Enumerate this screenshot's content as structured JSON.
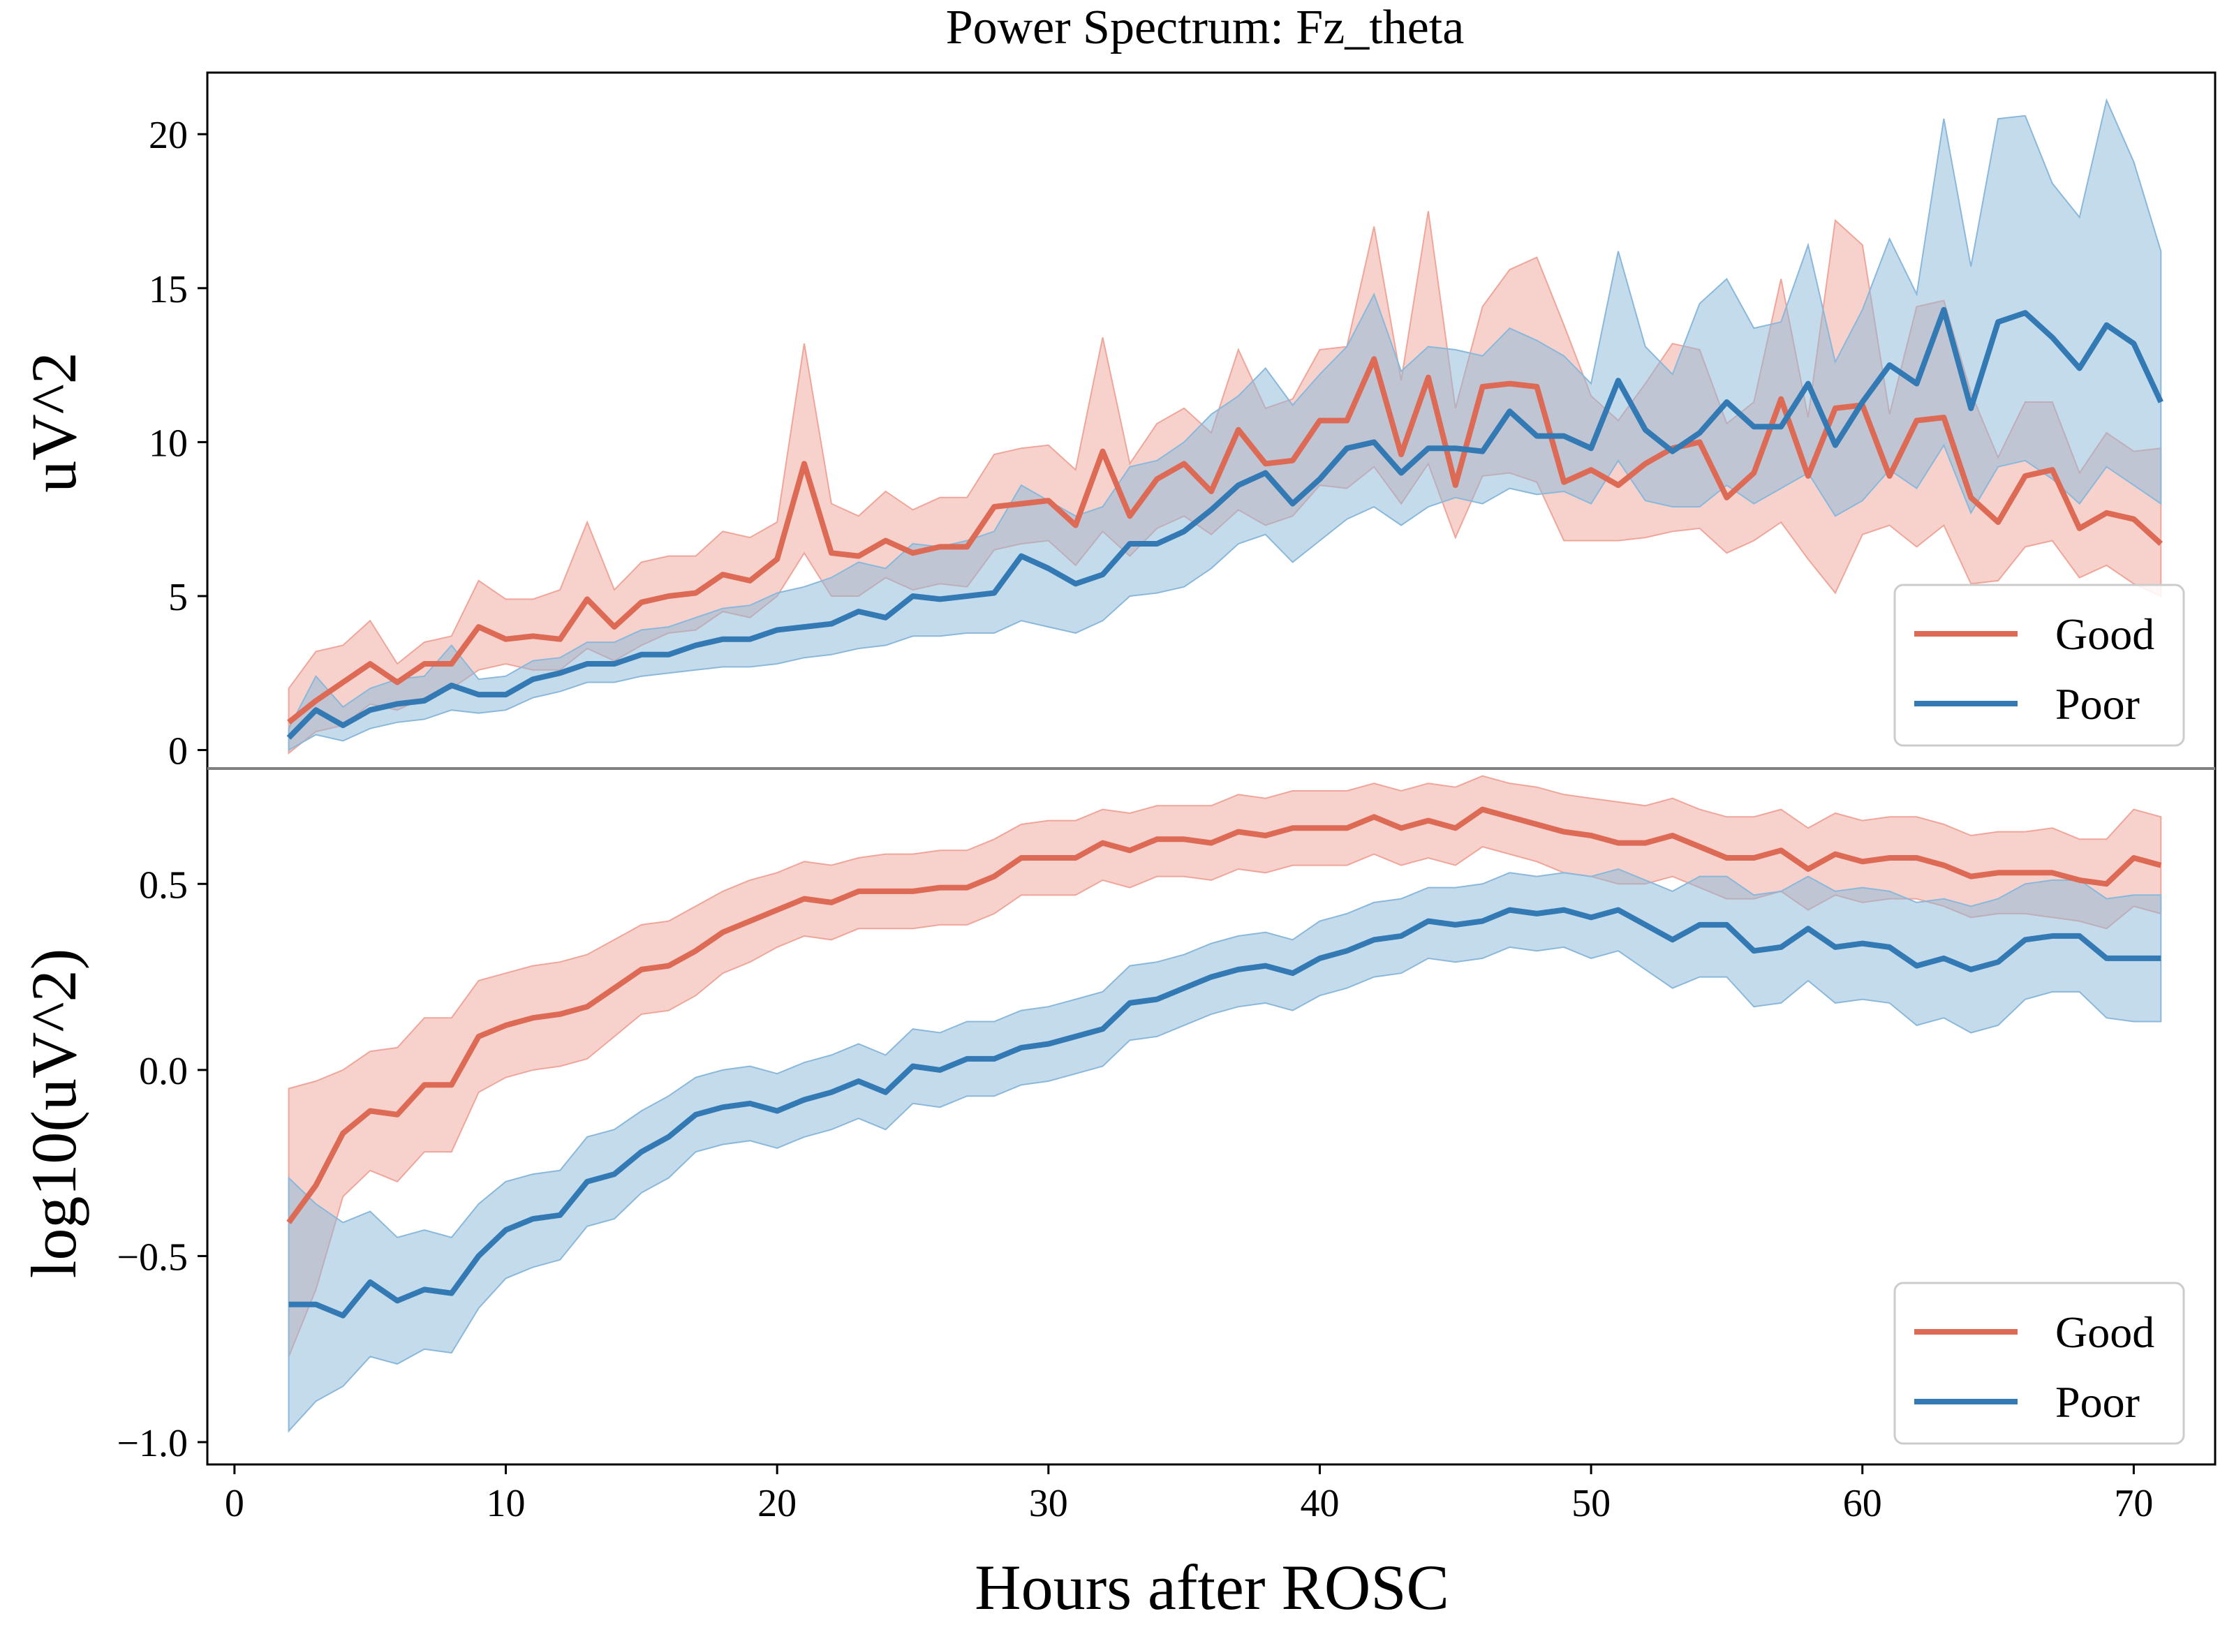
{
  "figure": {
    "title": "Power Spectrum: Fz_theta",
    "xlabel": "Hours after ROSC"
  },
  "colors": {
    "Good": "#dd6a55",
    "Poor": "#3379b4",
    "Good_band": "#f0a59a",
    "Poor_band": "#8ab8da"
  },
  "chart_data": [
    {
      "type": "line",
      "panel": "top",
      "title": "Power Spectrum: Fz_theta",
      "xlabel": "",
      "ylabel": "uV^2",
      "xlim": [
        -1,
        73
      ],
      "ylim": [
        -0.6,
        22.0
      ],
      "xticks": [
        0,
        10,
        20,
        30,
        40,
        50,
        60,
        70
      ],
      "yticks": [
        0,
        5,
        10,
        15,
        20
      ],
      "ytick_labels": [
        "0",
        "5",
        "10",
        "15",
        "20"
      ],
      "grid": false,
      "legend": "lower right",
      "x": [
        2,
        3,
        4,
        5,
        6,
        7,
        8,
        9,
        10,
        11,
        12,
        13,
        14,
        15,
        16,
        17,
        18,
        19,
        20,
        21,
        22,
        23,
        24,
        25,
        26,
        27,
        28,
        29,
        30,
        31,
        32,
        33,
        34,
        35,
        36,
        37,
        38,
        39,
        40,
        41,
        42,
        43,
        44,
        45,
        46,
        47,
        48,
        49,
        50,
        51,
        52,
        53,
        54,
        55,
        56,
        57,
        58,
        59,
        60,
        61,
        62,
        63,
        64,
        65,
        66,
        67,
        68,
        69,
        70,
        71
      ],
      "series": [
        {
          "name": "Good",
          "values": [
            0.9,
            1.6,
            2.2,
            2.8,
            2.2,
            2.8,
            2.8,
            4.0,
            3.6,
            3.7,
            3.6,
            4.9,
            4.0,
            4.8,
            5.0,
            5.1,
            5.7,
            5.5,
            6.2,
            9.3,
            6.4,
            6.3,
            6.8,
            6.4,
            6.6,
            6.6,
            7.9,
            8.0,
            8.1,
            7.3,
            9.7,
            7.6,
            8.8,
            9.3,
            8.4,
            10.4,
            9.3,
            9.4,
            10.7,
            10.7,
            12.7,
            9.6,
            12.1,
            8.6,
            11.8,
            11.9,
            11.8,
            8.7,
            9.1,
            8.6,
            9.3,
            9.8,
            10.0,
            8.2,
            9.0,
            11.4,
            8.9,
            11.1,
            11.2,
            8.9,
            10.7,
            10.8,
            8.2,
            7.4,
            8.9,
            9.1,
            7.2,
            7.7,
            7.5,
            6.7
          ],
          "upper": [
            2.0,
            3.2,
            3.4,
            4.2,
            2.8,
            3.5,
            3.7,
            5.5,
            4.9,
            4.9,
            5.2,
            7.4,
            5.2,
            6.1,
            6.3,
            6.3,
            7.1,
            6.9,
            7.4,
            13.2,
            8.0,
            7.6,
            8.4,
            7.8,
            8.2,
            8.2,
            9.6,
            9.8,
            9.9,
            9.1,
            13.4,
            9.3,
            10.6,
            11.1,
            10.3,
            13.0,
            11.1,
            11.4,
            13.0,
            13.1,
            17.0,
            12.0,
            17.5,
            11.1,
            14.4,
            15.6,
            16.0,
            13.8,
            11.5,
            10.7,
            11.9,
            13.2,
            13.0,
            10.6,
            11.3,
            15.3,
            10.8,
            17.2,
            16.4,
            10.9,
            14.4,
            14.6,
            11.6,
            9.5,
            11.3,
            11.3,
            9.0,
            10.3,
            9.7,
            9.8
          ],
          "lower": [
            -0.1,
            0.6,
            0.8,
            1.5,
            1.3,
            1.7,
            2.0,
            2.6,
            2.8,
            2.6,
            2.6,
            3.3,
            2.9,
            3.4,
            3.8,
            3.9,
            4.5,
            4.3,
            5.0,
            6.4,
            5.0,
            5.0,
            5.6,
            5.2,
            5.4,
            5.3,
            6.5,
            6.7,
            6.8,
            6.0,
            7.1,
            6.3,
            7.2,
            7.6,
            7.0,
            7.8,
            7.3,
            7.6,
            8.6,
            8.5,
            9.2,
            8.0,
            9.3,
            6.9,
            8.9,
            9.0,
            8.7,
            6.8,
            6.8,
            6.8,
            6.9,
            7.1,
            7.2,
            6.4,
            6.8,
            7.4,
            6.2,
            5.1,
            7.0,
            7.3,
            6.6,
            7.3,
            5.4,
            5.5,
            6.6,
            6.8,
            5.6,
            6.0,
            5.4,
            5.0
          ]
        },
        {
          "name": "Poor",
          "values": [
            0.4,
            1.3,
            0.8,
            1.3,
            1.5,
            1.6,
            2.1,
            1.8,
            1.8,
            2.3,
            2.5,
            2.8,
            2.8,
            3.1,
            3.1,
            3.4,
            3.6,
            3.6,
            3.9,
            4.0,
            4.1,
            4.5,
            4.3,
            5.0,
            4.9,
            5.0,
            5.1,
            6.3,
            5.9,
            5.4,
            5.7,
            6.7,
            6.7,
            7.1,
            7.8,
            8.6,
            9.0,
            8.0,
            8.8,
            9.8,
            10.0,
            9.0,
            9.8,
            9.8,
            9.7,
            11.0,
            10.2,
            10.2,
            9.8,
            12.0,
            10.4,
            9.7,
            10.3,
            11.3,
            10.5,
            10.5,
            11.9,
            9.9,
            11.3,
            12.5,
            11.9,
            14.3,
            11.1,
            13.9,
            14.2,
            13.4,
            12.4,
            13.8,
            13.2,
            11.3
          ],
          "upper": [
            0.7,
            2.4,
            1.4,
            2.0,
            2.3,
            2.4,
            3.4,
            2.3,
            2.4,
            2.9,
            3.0,
            3.5,
            3.5,
            3.9,
            4.0,
            4.3,
            4.6,
            4.7,
            5.1,
            5.3,
            5.6,
            6.1,
            5.9,
            6.7,
            6.6,
            6.8,
            7.1,
            8.6,
            8.1,
            7.6,
            7.9,
            9.2,
            9.4,
            10.0,
            10.9,
            11.5,
            12.4,
            11.2,
            12.2,
            13.1,
            14.8,
            12.3,
            13.1,
            13.0,
            12.8,
            13.7,
            13.3,
            12.8,
            11.9,
            16.2,
            13.1,
            12.2,
            14.5,
            15.3,
            13.7,
            13.9,
            16.4,
            12.6,
            14.3,
            16.6,
            14.8,
            20.5,
            15.7,
            20.5,
            20.6,
            18.4,
            17.3,
            21.1,
            19.1,
            16.2
          ],
          "lower": [
            0.0,
            0.5,
            0.3,
            0.7,
            0.9,
            1.0,
            1.3,
            1.2,
            1.3,
            1.7,
            1.9,
            2.2,
            2.2,
            2.4,
            2.5,
            2.6,
            2.7,
            2.7,
            2.8,
            3.0,
            3.1,
            3.3,
            3.4,
            3.7,
            3.7,
            3.8,
            3.8,
            4.2,
            4.0,
            3.8,
            4.2,
            5.0,
            5.1,
            5.3,
            5.9,
            6.7,
            7.0,
            6.1,
            6.8,
            7.5,
            7.9,
            7.3,
            7.9,
            8.2,
            8.0,
            8.5,
            8.3,
            8.4,
            8.0,
            9.4,
            8.1,
            7.9,
            7.9,
            8.6,
            8.0,
            8.5,
            9.0,
            7.6,
            8.1,
            9.1,
            8.5,
            9.9,
            7.7,
            9.2,
            9.4,
            8.8,
            8.0,
            9.2,
            8.6,
            8.0
          ]
        }
      ]
    },
    {
      "type": "line",
      "panel": "bottom",
      "title": "",
      "xlabel": "Hours after ROSC",
      "ylabel": "log10(uV^2)",
      "xlim": [
        -1,
        73
      ],
      "ylim": [
        -1.06,
        0.81
      ],
      "xticks": [
        0,
        10,
        20,
        30,
        40,
        50,
        60,
        70
      ],
      "yticks": [
        -1.0,
        -0.5,
        0.0,
        0.5
      ],
      "ytick_labels": [
        "−1.0",
        "−0.5",
        "0.0",
        "0.5"
      ],
      "grid": false,
      "legend": "lower right",
      "x": [
        2,
        3,
        4,
        5,
        6,
        7,
        8,
        9,
        10,
        11,
        12,
        13,
        14,
        15,
        16,
        17,
        18,
        19,
        20,
        21,
        22,
        23,
        24,
        25,
        26,
        27,
        28,
        29,
        30,
        31,
        32,
        33,
        34,
        35,
        36,
        37,
        38,
        39,
        40,
        41,
        42,
        43,
        44,
        45,
        46,
        47,
        48,
        49,
        50,
        51,
        52,
        53,
        54,
        55,
        56,
        57,
        58,
        59,
        60,
        61,
        62,
        63,
        64,
        65,
        66,
        67,
        68,
        69,
        70,
        71
      ],
      "series": [
        {
          "name": "Good",
          "values": [
            -0.41,
            -0.31,
            -0.17,
            -0.11,
            -0.12,
            -0.04,
            -0.04,
            0.09,
            0.12,
            0.14,
            0.15,
            0.17,
            0.22,
            0.27,
            0.28,
            0.32,
            0.37,
            0.4,
            0.43,
            0.46,
            0.45,
            0.48,
            0.48,
            0.48,
            0.49,
            0.49,
            0.52,
            0.57,
            0.57,
            0.57,
            0.61,
            0.59,
            0.62,
            0.62,
            0.61,
            0.64,
            0.63,
            0.65,
            0.65,
            0.65,
            0.68,
            0.65,
            0.67,
            0.65,
            0.7,
            0.68,
            0.66,
            0.64,
            0.63,
            0.61,
            0.61,
            0.63,
            0.6,
            0.57,
            0.57,
            0.59,
            0.54,
            0.58,
            0.56,
            0.57,
            0.57,
            0.55,
            0.52,
            0.53,
            0.53,
            0.53,
            0.51,
            0.5,
            0.57,
            0.55
          ],
          "upper": [
            -0.05,
            -0.03,
            0.0,
            0.05,
            0.06,
            0.14,
            0.14,
            0.24,
            0.26,
            0.28,
            0.29,
            0.31,
            0.35,
            0.39,
            0.4,
            0.44,
            0.48,
            0.51,
            0.53,
            0.56,
            0.55,
            0.57,
            0.58,
            0.58,
            0.59,
            0.59,
            0.62,
            0.66,
            0.67,
            0.67,
            0.7,
            0.69,
            0.71,
            0.71,
            0.71,
            0.74,
            0.73,
            0.75,
            0.75,
            0.75,
            0.77,
            0.75,
            0.77,
            0.76,
            0.79,
            0.77,
            0.76,
            0.74,
            0.73,
            0.72,
            0.71,
            0.73,
            0.7,
            0.68,
            0.68,
            0.7,
            0.65,
            0.69,
            0.67,
            0.68,
            0.68,
            0.66,
            0.63,
            0.64,
            0.64,
            0.65,
            0.62,
            0.62,
            0.7,
            0.68
          ],
          "lower": [
            -0.77,
            -0.59,
            -0.34,
            -0.27,
            -0.3,
            -0.22,
            -0.22,
            -0.06,
            -0.02,
            0.0,
            0.01,
            0.03,
            0.09,
            0.15,
            0.16,
            0.2,
            0.26,
            0.29,
            0.33,
            0.36,
            0.35,
            0.38,
            0.38,
            0.38,
            0.39,
            0.39,
            0.42,
            0.47,
            0.47,
            0.47,
            0.51,
            0.49,
            0.52,
            0.52,
            0.51,
            0.54,
            0.53,
            0.55,
            0.55,
            0.55,
            0.58,
            0.55,
            0.57,
            0.55,
            0.6,
            0.58,
            0.56,
            0.53,
            0.52,
            0.5,
            0.5,
            0.52,
            0.49,
            0.46,
            0.46,
            0.48,
            0.43,
            0.47,
            0.45,
            0.46,
            0.46,
            0.44,
            0.41,
            0.42,
            0.42,
            0.41,
            0.4,
            0.38,
            0.44,
            0.42
          ]
        },
        {
          "name": "Poor",
          "values": [
            -0.63,
            -0.63,
            -0.66,
            -0.57,
            -0.62,
            -0.59,
            -0.6,
            -0.5,
            -0.43,
            -0.4,
            -0.39,
            -0.3,
            -0.28,
            -0.22,
            -0.18,
            -0.12,
            -0.1,
            -0.09,
            -0.11,
            -0.08,
            -0.06,
            -0.03,
            -0.06,
            0.01,
            0.0,
            0.03,
            0.03,
            0.06,
            0.07,
            0.09,
            0.11,
            0.18,
            0.19,
            0.22,
            0.25,
            0.27,
            0.28,
            0.26,
            0.3,
            0.32,
            0.35,
            0.36,
            0.4,
            0.39,
            0.4,
            0.43,
            0.42,
            0.43,
            0.41,
            0.43,
            0.39,
            0.35,
            0.39,
            0.39,
            0.32,
            0.33,
            0.38,
            0.33,
            0.34,
            0.33,
            0.28,
            0.3,
            0.27,
            0.29,
            0.35,
            0.36,
            0.36,
            0.3,
            0.3,
            0.3
          ],
          "upper": [
            -0.29,
            -0.36,
            -0.41,
            -0.38,
            -0.45,
            -0.43,
            -0.45,
            -0.36,
            -0.3,
            -0.28,
            -0.27,
            -0.18,
            -0.16,
            -0.11,
            -0.07,
            -0.02,
            0.0,
            0.01,
            -0.01,
            0.02,
            0.04,
            0.07,
            0.04,
            0.11,
            0.1,
            0.13,
            0.13,
            0.16,
            0.17,
            0.19,
            0.21,
            0.28,
            0.29,
            0.31,
            0.34,
            0.36,
            0.37,
            0.35,
            0.4,
            0.42,
            0.45,
            0.46,
            0.49,
            0.49,
            0.5,
            0.53,
            0.52,
            0.53,
            0.52,
            0.54,
            0.51,
            0.48,
            0.52,
            0.52,
            0.47,
            0.48,
            0.52,
            0.48,
            0.49,
            0.48,
            0.45,
            0.46,
            0.44,
            0.46,
            0.5,
            0.51,
            0.51,
            0.46,
            0.47,
            0.47
          ],
          "lower": [
            -0.97,
            -0.89,
            -0.85,
            -0.77,
            -0.79,
            -0.75,
            -0.76,
            -0.64,
            -0.56,
            -0.53,
            -0.51,
            -0.42,
            -0.4,
            -0.33,
            -0.29,
            -0.22,
            -0.2,
            -0.19,
            -0.21,
            -0.18,
            -0.16,
            -0.13,
            -0.16,
            -0.09,
            -0.1,
            -0.07,
            -0.07,
            -0.04,
            -0.03,
            -0.01,
            0.01,
            0.08,
            0.09,
            0.12,
            0.15,
            0.17,
            0.18,
            0.16,
            0.2,
            0.22,
            0.25,
            0.26,
            0.3,
            0.29,
            0.3,
            0.33,
            0.32,
            0.33,
            0.3,
            0.32,
            0.27,
            0.22,
            0.25,
            0.25,
            0.17,
            0.18,
            0.24,
            0.18,
            0.19,
            0.18,
            0.12,
            0.14,
            0.1,
            0.12,
            0.19,
            0.21,
            0.21,
            0.14,
            0.13,
            0.13
          ]
        }
      ]
    }
  ]
}
